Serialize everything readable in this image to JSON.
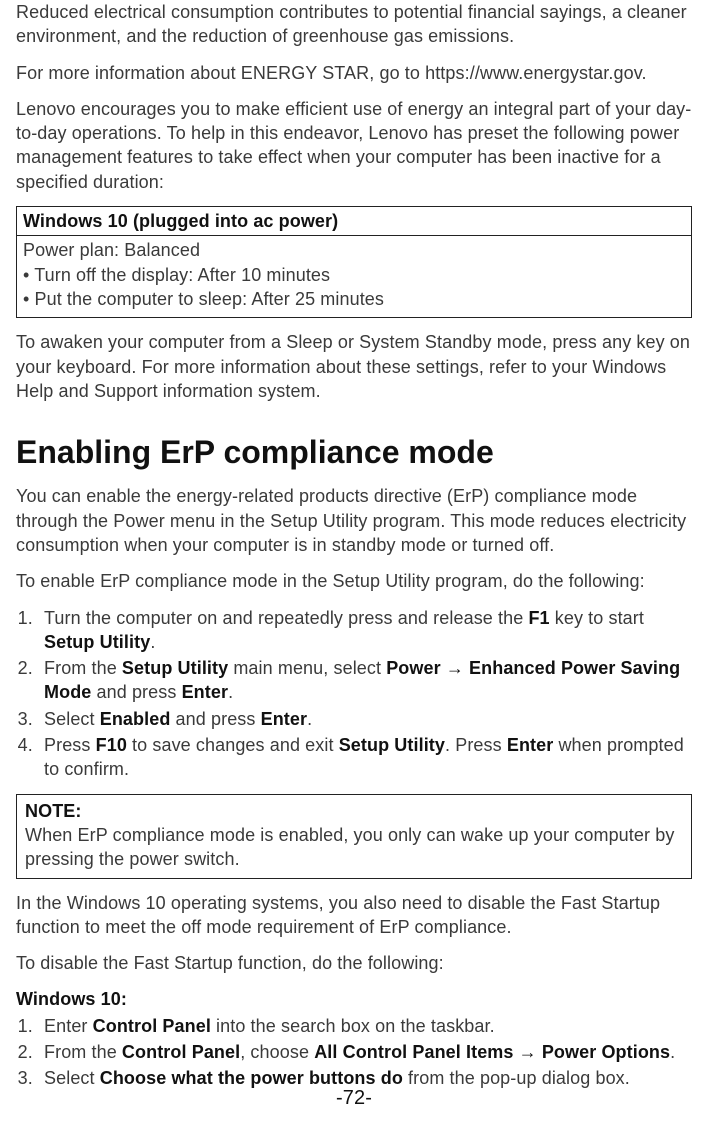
{
  "intro": {
    "p1": "Reduced electrical consumption contributes to potential financial sayings, a cleaner environment, and the reduction of greenhouse gas emissions.",
    "p2": "For more information about ENERGY STAR, go to https://www.energystar.gov.",
    "p3": "Lenovo encourages you to make efficient use of energy an integral part of your day-to-day operations. To help in this endeavor, Lenovo has preset the following power management features to take effect when your computer has been inactive for a specified duration:"
  },
  "power_table": {
    "header": "Windows 10 (plugged into ac power)",
    "plan_line": "Power plan: Balanced",
    "bullets": [
      "Turn off the display: After 10 minutes",
      "Put the computer to sleep: After 25 minutes"
    ]
  },
  "after_table": "To awaken your computer from a Sleep or System Standby mode, press any key on your keyboard. For more information about these settings, refer to your Windows Help and Support information system.",
  "heading": "Enabling ErP compliance mode",
  "erp_intro": "You can enable the energy-related products directive (ErP) compliance mode through the Power menu in the Setup Utility program. This mode reduces electricity consumption when your computer is in standby mode or turned off.",
  "erp_lead": "To enable ErP compliance mode in the Setup Utility program, do the following:",
  "erp_steps": {
    "s1_a": "Turn the computer on and repeatedly press and release the ",
    "s1_b": "F1",
    "s1_c": " key to start ",
    "s1_d": "Setup Utility",
    "s1_e": ".",
    "s2_a": "From the ",
    "s2_b": "Setup Utility",
    "s2_c": " main menu, select ",
    "s2_d": "Power → Enhanced Power Saving Mode",
    "s2_e": " and press ",
    "s2_f": "Enter",
    "s2_g": ".",
    "s3_a": "Select ",
    "s3_b": "Enabled",
    "s3_c": " and press ",
    "s3_d": "Enter",
    "s3_e": ".",
    "s4_a": "Press ",
    "s4_b": "F10",
    "s4_c": " to save changes and exit ",
    "s4_d": "Setup Utility",
    "s4_e": ". Press ",
    "s4_f": "Enter",
    "s4_g": " when prompted to confirm."
  },
  "note": {
    "title": "NOTE:",
    "body": "When ErP compliance mode is enabled, you only can wake up your computer by pressing the power switch."
  },
  "win10_after_note": "In the Windows 10 operating systems, you also need to disable the Fast Startup function to meet the off mode requirement of ErP compliance.",
  "fast_startup_lead": "To disable the Fast Startup function, do the following:",
  "win10_label": "Windows 10:",
  "fast_steps": {
    "s1_a": "Enter ",
    "s1_b": "Control Panel",
    "s1_c": " into the search box on the taskbar.",
    "s2_a": "From the ",
    "s2_b": "Control Panel",
    "s2_c": ", choose ",
    "s2_d": "All Control Panel Items → Power Options",
    "s2_e": ".",
    "s3_a": "Select ",
    "s3_b": "Choose what the power buttons do",
    "s3_c": " from the pop-up dialog box."
  },
  "page_number": "-72-"
}
